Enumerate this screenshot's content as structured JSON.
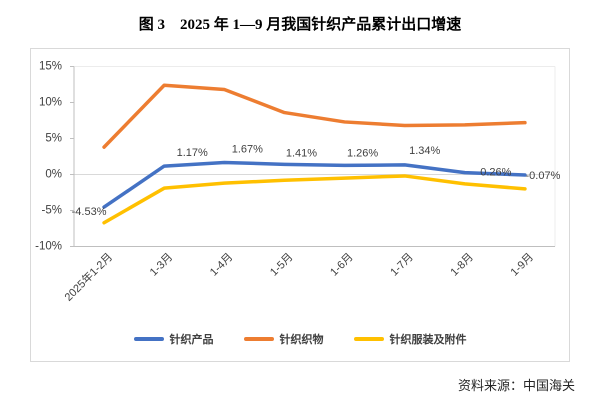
{
  "title": "图 3　2025 年 1—9 月我国针织产品累计出口增速",
  "source": "资料来源：中国海关",
  "chart_data": {
    "type": "line",
    "title": "2025 年 1—9 月我国针织产品累计出口增速",
    "categories": [
      "2025年1-2月",
      "1-3月",
      "1-4月",
      "1-5月",
      "1-6月",
      "1-7月",
      "1-8月",
      "1-9月"
    ],
    "series": [
      {
        "name": "针织产品",
        "color": "#4472C4",
        "values": [
          -4.53,
          1.17,
          1.67,
          1.41,
          1.26,
          1.34,
          0.26,
          -0.07
        ],
        "point_labels": [
          "-4.53%",
          "1.17%",
          "1.67%",
          "1.41%",
          "1.26%",
          "1.34%",
          "0.26%",
          "-0.07%"
        ]
      },
      {
        "name": "针织织物",
        "color": "#ED7D31",
        "values": [
          3.8,
          12.4,
          11.8,
          8.6,
          7.3,
          6.8,
          6.9,
          7.2
        ],
        "point_labels": null
      },
      {
        "name": "针织服装及附件",
        "color": "#FFC000",
        "values": [
          -6.7,
          -1.9,
          -1.2,
          -0.8,
          -0.5,
          -0.2,
          -1.3,
          -2.0
        ],
        "point_labels": null
      }
    ],
    "y_ticks": [
      {
        "label": "15%",
        "value": 15
      },
      {
        "label": "10%",
        "value": 10
      },
      {
        "label": "5%",
        "value": 5
      },
      {
        "label": "0%",
        "value": 0
      },
      {
        "label": "-5%",
        "value": -5
      },
      {
        "label": "-10%",
        "value": -10
      }
    ],
    "ylim": [
      -10,
      15
    ],
    "grid": "zero-line-only",
    "legend_position": "bottom",
    "axis_color": "#bfbfbf",
    "gridline_color": "#d9d9d9",
    "tick_label_color": "#404040"
  }
}
